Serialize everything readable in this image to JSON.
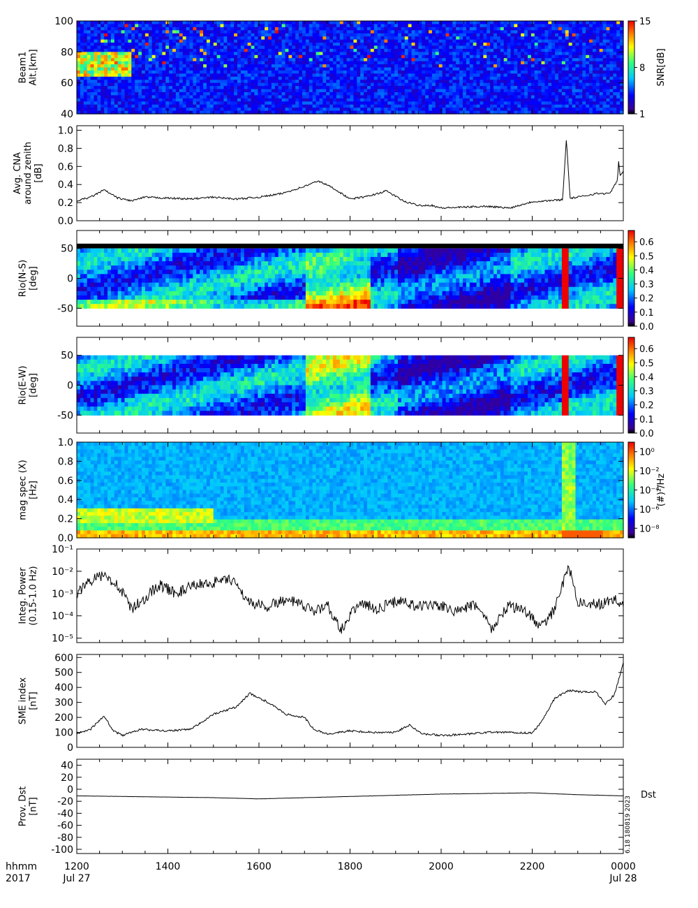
{
  "footer": {
    "row1_label": "hhmm",
    "row2_label": "2017",
    "x_ticks": [
      "1200",
      "1400",
      "1600",
      "1800",
      "2000",
      "2200",
      "0000"
    ],
    "x_dates": [
      {
        "at": 0,
        "text": "Jul 27"
      },
      {
        "at": 6,
        "text": "Jul 28"
      }
    ]
  },
  "side_stamp": "6.18 180819 2023",
  "chart_data": [
    {
      "type": "heatmap",
      "id": "beam1",
      "ylabel_lines": [
        "Beam1",
        "Alt.[km]"
      ],
      "yticks": [
        "100",
        "80",
        "60",
        "40"
      ],
      "ylim": [
        40,
        100
      ],
      "colorbar": {
        "label": "SNR[dB]",
        "ticks": [
          "15",
          "8",
          "1"
        ],
        "range": [
          1,
          15
        ]
      },
      "summary": "Mostly 1-5 dB background; enhanced 8-15 dB echoes at 65-80 km from 1200 to 1300, scattered high-SNR streaks above 70 km throughout."
    },
    {
      "type": "line",
      "id": "cna",
      "ylabel_lines": [
        "Avg. CNA",
        "around zenith",
        "[dB]"
      ],
      "yticks": [
        "1.0",
        "0.8",
        "0.6",
        "0.4",
        "0.2",
        "0.0"
      ],
      "ylim": [
        0,
        1.05
      ],
      "x_hours": [
        0,
        0.3,
        0.6,
        0.9,
        1.2,
        1.5,
        2,
        2.5,
        3,
        3.5,
        4,
        4.5,
        5,
        5.3,
        5.6,
        6.0,
        6.4,
        6.8,
        7.2,
        7.5,
        7.8,
        8,
        8.5,
        9,
        9.5,
        10,
        10.6,
        11,
        11.4,
        11.7,
        12
      ],
      "values": [
        0.22,
        0.26,
        0.34,
        0.25,
        0.22,
        0.26,
        0.25,
        0.24,
        0.26,
        0.24,
        0.26,
        0.3,
        0.38,
        0.44,
        0.37,
        0.24,
        0.27,
        0.33,
        0.21,
        0.17,
        0.17,
        0.14,
        0.15,
        0.16,
        0.14,
        0.21,
        0.23,
        0.26,
        0.3,
        0.3,
        0.55
      ],
      "spikes": [
        {
          "x": 10.75,
          "y": 0.9
        },
        {
          "x": 11.9,
          "y": 0.68
        }
      ]
    },
    {
      "type": "heatmap",
      "id": "rio_ns",
      "ylabel_lines": [
        "Rio(N-S)",
        "[deg]"
      ],
      "yticks": [
        "50",
        "0",
        "-50"
      ],
      "ylim": [
        -80,
        80
      ],
      "colorbar": {
        "label": "",
        "ticks": [
          "0.6",
          "0.5",
          "0.4",
          "0.3",
          "0.2",
          "0.1",
          "0.0"
        ],
        "range": [
          0,
          0.68
        ]
      }
    },
    {
      "type": "heatmap",
      "id": "rio_ew",
      "ylabel_lines": [
        "Rio(E-W)",
        "[deg]"
      ],
      "yticks": [
        "50",
        "0",
        "-50"
      ],
      "ylim": [
        -80,
        80
      ],
      "colorbar": {
        "label": "",
        "ticks": [
          "0.6",
          "0.5",
          "0.4",
          "0.3",
          "0.2",
          "0.1",
          "0.0"
        ],
        "range": [
          0,
          0.68
        ]
      }
    },
    {
      "type": "heatmap",
      "id": "mag_spec",
      "ylabel_lines": [
        "mag spec (X)",
        "[Hz]"
      ],
      "yticks": [
        "1.0",
        "0.8",
        "0.6",
        "0.4",
        "0.2",
        "0.0"
      ],
      "ylim": [
        0,
        1.0
      ],
      "colorbar": {
        "label": "(#)²/Hz",
        "ticks": [
          "10⁰",
          "10⁻²",
          "10⁻⁴",
          "10⁻⁶",
          "10⁻⁸"
        ],
        "range": [
          -9,
          1
        ]
      }
    },
    {
      "type": "line",
      "id": "integ_power",
      "ylabel_lines": [
        "Integ. Power",
        "(0.15-1.0 Hz)"
      ],
      "yticks": [
        "10⁻¹",
        "10⁻²",
        "10⁻³",
        "10⁻⁴",
        "10⁻⁵"
      ],
      "ylog": true,
      "ylim_log10": [
        -5.2,
        -1
      ],
      "x_hours": [
        0,
        0.3,
        0.6,
        0.9,
        1.2,
        1.5,
        1.8,
        2.2,
        2.6,
        3,
        3.4,
        3.8,
        4.2,
        4.5,
        4.8,
        5.2,
        5.5,
        5.8,
        6.2,
        6.6,
        6.8,
        7.1,
        7.5,
        7.9,
        8.3,
        8.8,
        9.1,
        9.5,
        9.9,
        10.2,
        10.5,
        10.8,
        11.0,
        11.4,
        11.8,
        12
      ],
      "values_log10": [
        -3.0,
        -2.4,
        -2.2,
        -2.6,
        -3.7,
        -3.2,
        -2.6,
        -3.0,
        -2.6,
        -2.5,
        -2.4,
        -3.4,
        -3.6,
        -3.3,
        -3.4,
        -3.8,
        -3.5,
        -4.6,
        -3.4,
        -3.7,
        -3.5,
        -3.3,
        -3.6,
        -3.5,
        -3.8,
        -3.5,
        -4.6,
        -3.5,
        -3.9,
        -4.5,
        -3.7,
        -1.7,
        -3.4,
        -3.5,
        -3.3,
        -3.4
      ]
    },
    {
      "type": "line",
      "id": "sme",
      "ylabel_lines": [
        "SME index",
        "[nT]"
      ],
      "yticks": [
        "600",
        "500",
        "400",
        "300",
        "200",
        "100",
        "0"
      ],
      "ylim": [
        0,
        620
      ],
      "x_hours": [
        0,
        0.3,
        0.6,
        0.8,
        1.0,
        1.4,
        2.0,
        2.5,
        3.0,
        3.5,
        3.8,
        4.2,
        4.6,
        5.0,
        5.2,
        5.5,
        6.0,
        6.5,
        7.0,
        7.3,
        7.6,
        8.0,
        8.5,
        9,
        9.5,
        10,
        10.2,
        10.5,
        10.8,
        11.1,
        11.4,
        11.6,
        11.8,
        12
      ],
      "values": [
        90,
        120,
        210,
        110,
        80,
        120,
        110,
        120,
        220,
        270,
        360,
        300,
        220,
        200,
        120,
        90,
        110,
        100,
        100,
        150,
        90,
        80,
        85,
        100,
        100,
        95,
        170,
        330,
        380,
        370,
        370,
        290,
        350,
        560
      ]
    },
    {
      "type": "line",
      "id": "dst",
      "ylabel_lines": [
        "Prov. Dst",
        "[nT]"
      ],
      "yticks": [
        "40",
        "20",
        "0",
        "-20",
        "-40",
        "-60",
        "-80",
        "-100"
      ],
      "ylim": [
        -107,
        50
      ],
      "legend": "Dst",
      "x_hours": [
        0,
        1,
        2,
        3,
        4,
        5,
        6,
        7,
        8,
        9,
        10,
        11,
        12
      ],
      "values": [
        -11,
        -12,
        -13,
        -14,
        -16,
        -14,
        -12,
        -10,
        -8,
        -7,
        -6,
        -9,
        -11
      ]
    }
  ]
}
